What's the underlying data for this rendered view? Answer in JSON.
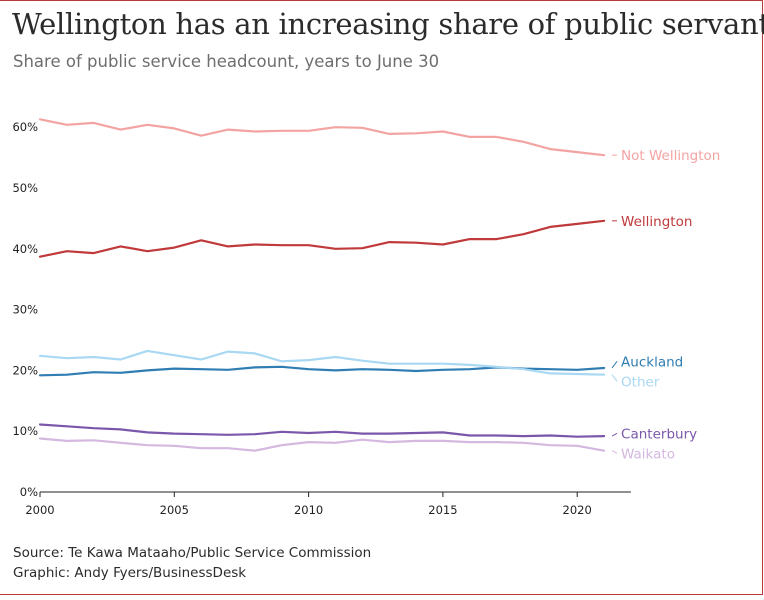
{
  "title": "Wellington has an increasing share of public servants",
  "subtitle": "Share of public service headcount, years to June 30",
  "footer": {
    "source": "Source: Te Kawa Mataaho/Public Service Commission",
    "graphic": "Graphic: Andy Fyers/BusinessDesk"
  },
  "colors": {
    "frame": "#b93a3a",
    "axis": "#222222",
    "tick_text": "#222222"
  },
  "chart_data": {
    "type": "line",
    "title": "Wellington has an increasing share of public servants",
    "subtitle": "Share of public service headcount, years to June 30",
    "xlim": [
      2000,
      2022
    ],
    "ylim": [
      0,
      62
    ],
    "x_ticks": [
      2000,
      2005,
      2010,
      2015,
      2020
    ],
    "y_ticks": [
      0,
      10,
      20,
      30,
      40,
      50,
      60
    ],
    "y_tick_labels": [
      "0%",
      "10%",
      "20%",
      "30%",
      "40%",
      "50%",
      "60%"
    ],
    "grid": false,
    "legend": "inline labels at line ends (right)",
    "x": [
      2000,
      2001,
      2002,
      2003,
      2004,
      2005,
      2006,
      2007,
      2008,
      2009,
      2010,
      2011,
      2012,
      2013,
      2014,
      2015,
      2016,
      2017,
      2018,
      2019,
      2020,
      2021
    ],
    "series": [
      {
        "name": "Not Wellington",
        "color": "#f4a3a3",
        "values": [
          61.3,
          60.4,
          60.7,
          59.6,
          60.4,
          59.8,
          58.6,
          59.6,
          59.3,
          59.4,
          59.4,
          60.0,
          59.9,
          58.9,
          59.0,
          59.3,
          58.4,
          58.4,
          57.6,
          56.4,
          55.9,
          55.4
        ]
      },
      {
        "name": "Wellington",
        "color": "#c0393b",
        "values": [
          38.7,
          39.6,
          39.3,
          40.4,
          39.6,
          40.2,
          41.4,
          40.4,
          40.7,
          40.6,
          40.6,
          40.0,
          40.1,
          41.1,
          41.0,
          40.7,
          41.6,
          41.6,
          42.4,
          43.6,
          44.1,
          44.6
        ]
      },
      {
        "name": "Auckland",
        "color": "#2f7db3",
        "values": [
          19.2,
          19.3,
          19.7,
          19.6,
          20.0,
          20.3,
          20.2,
          20.1,
          20.5,
          20.6,
          20.2,
          20.0,
          20.2,
          20.1,
          19.9,
          20.1,
          20.2,
          20.5,
          20.3,
          20.2,
          20.1,
          20.4
        ]
      },
      {
        "name": "Other",
        "color": "#a8d8f2",
        "values": [
          22.4,
          22.0,
          22.2,
          21.8,
          23.2,
          22.5,
          21.8,
          23.1,
          22.8,
          21.5,
          21.7,
          22.2,
          21.6,
          21.1,
          21.1,
          21.1,
          20.9,
          20.6,
          20.2,
          19.5,
          19.4,
          19.3
        ]
      },
      {
        "name": "Canterbury",
        "color": "#7b57ab",
        "values": [
          11.1,
          10.8,
          10.5,
          10.3,
          9.8,
          9.6,
          9.5,
          9.4,
          9.5,
          9.9,
          9.7,
          9.9,
          9.6,
          9.6,
          9.7,
          9.8,
          9.3,
          9.3,
          9.2,
          9.3,
          9.1,
          9.2
        ]
      },
      {
        "name": "Waikato",
        "color": "#d4b8df",
        "values": [
          8.8,
          8.4,
          8.5,
          8.1,
          7.7,
          7.6,
          7.2,
          7.2,
          6.8,
          7.7,
          8.2,
          8.1,
          8.6,
          8.2,
          8.4,
          8.4,
          8.2,
          8.2,
          8.1,
          7.7,
          7.6,
          6.8
        ]
      }
    ]
  }
}
